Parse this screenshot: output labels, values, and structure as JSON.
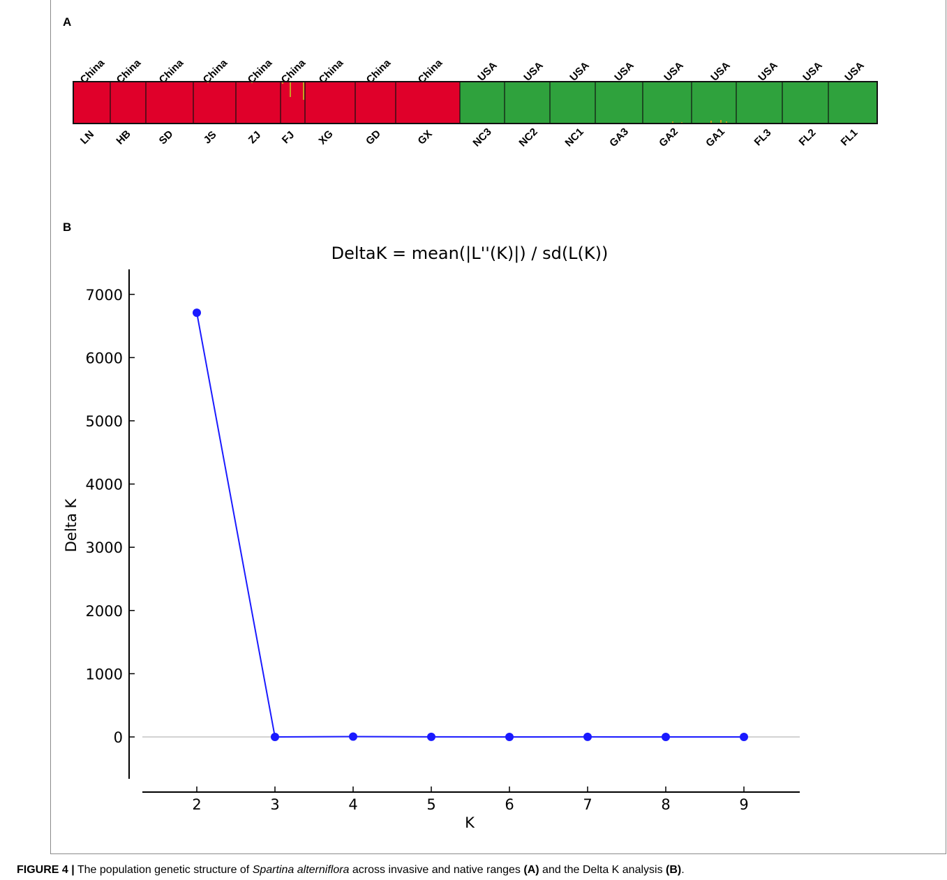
{
  "panel_a": {
    "letter": "A",
    "countries": [
      "China",
      "China",
      "China",
      "China",
      "China",
      "China",
      "China",
      "China",
      "China",
      "USA",
      "USA",
      "USA",
      "USA",
      "USA",
      "USA",
      "USA",
      "USA",
      "USA"
    ],
    "populations": [
      "LN",
      "HB",
      "SD",
      "JS",
      "ZJ",
      "FJ",
      "XG",
      "GD",
      "GX",
      "NC3",
      "NC2",
      "NC1",
      "GA3",
      "GA2",
      "GA1",
      "FL3",
      "FL2",
      "FL1"
    ],
    "colors": {
      "china": "#e0002a",
      "usa": "#2fa23d",
      "admixture": "#c8a022"
    }
  },
  "panel_b": {
    "letter": "B"
  },
  "chart_data": {
    "type": "line",
    "title": "DeltaK = mean(|L''(K)|) / sd(L(K))",
    "xlabel": "K",
    "ylabel": "Delta K",
    "x": [
      2,
      3,
      4,
      5,
      6,
      7,
      8,
      9
    ],
    "series": [
      {
        "values": [
          6710,
          0,
          5,
          1,
          0,
          1,
          0,
          0
        ],
        "color": "#1a1aff"
      }
    ],
    "xticks": [
      "2",
      "3",
      "4",
      "5",
      "6",
      "7",
      "8",
      "9"
    ],
    "yticks": [
      "0",
      "1000",
      "2000",
      "3000",
      "4000",
      "5000",
      "6000",
      "7000"
    ],
    "xlim": [
      1.3,
      9.7
    ],
    "ylim": [
      -700,
      7400
    ],
    "zero_line": true,
    "grid": false,
    "legend": "none"
  },
  "caption": {
    "label": "FIGURE 4 |",
    "text_1": " The population genetic structure of ",
    "species": "Spartina alterniflora",
    "text_2": " across invasive and native ranges ",
    "ref_a": "(A)",
    "text_3": " and the Delta K analysis ",
    "ref_b": "(B)",
    "text_4": "."
  }
}
